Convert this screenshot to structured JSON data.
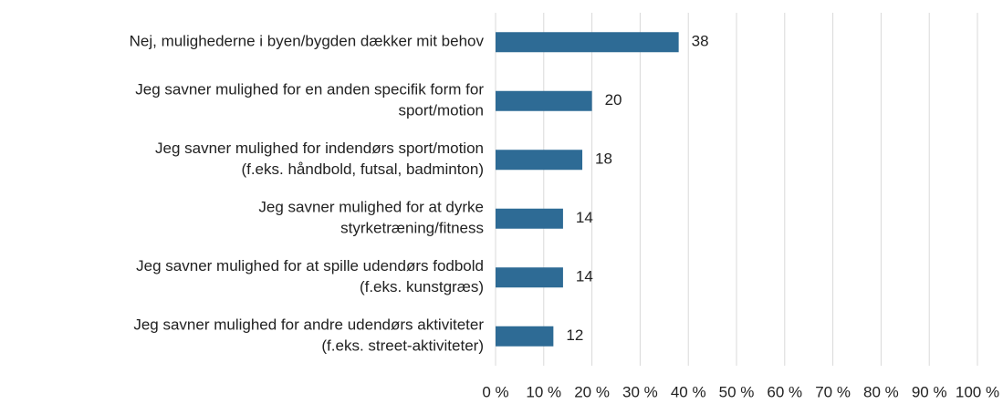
{
  "chart_data": {
    "type": "hbar",
    "categories": [
      [
        "Nej, mulighederne i byen/bygden dækker mit behov"
      ],
      [
        "Jeg savner mulighed for en anden specifik form for",
        "sport/motion"
      ],
      [
        "Jeg savner mulighed for indendørs sport/motion",
        "(f.eks. håndbold, futsal, badminton)"
      ],
      [
        "Jeg savner mulighed for at dyrke",
        "styrketræning/fitness"
      ],
      [
        "Jeg savner mulighed for at spille udendørs fodbold",
        "(f.eks. kunstgræs)"
      ],
      [
        "Jeg savner mulighed for andre udendørs aktiviteter",
        "(f.eks. street-aktiviteter)"
      ]
    ],
    "values": [
      38,
      20,
      18,
      14,
      14,
      12
    ],
    "color": "#2e6b95",
    "xlim": [
      0,
      100
    ],
    "xticks": [
      {
        "value": 0,
        "label": "0 %"
      },
      {
        "value": 10,
        "label": "10 %"
      },
      {
        "value": 20,
        "label": "20 %"
      },
      {
        "value": 30,
        "label": "30 %"
      },
      {
        "value": 40,
        "label": "40 %"
      },
      {
        "value": 50,
        "label": "50 %"
      },
      {
        "value": 60,
        "label": "60 %"
      },
      {
        "value": 70,
        "label": "70 %"
      },
      {
        "value": 80,
        "label": "80 %"
      },
      {
        "value": 90,
        "label": "90 %"
      },
      {
        "value": 100,
        "label": "100 %"
      }
    ],
    "grid": true
  }
}
